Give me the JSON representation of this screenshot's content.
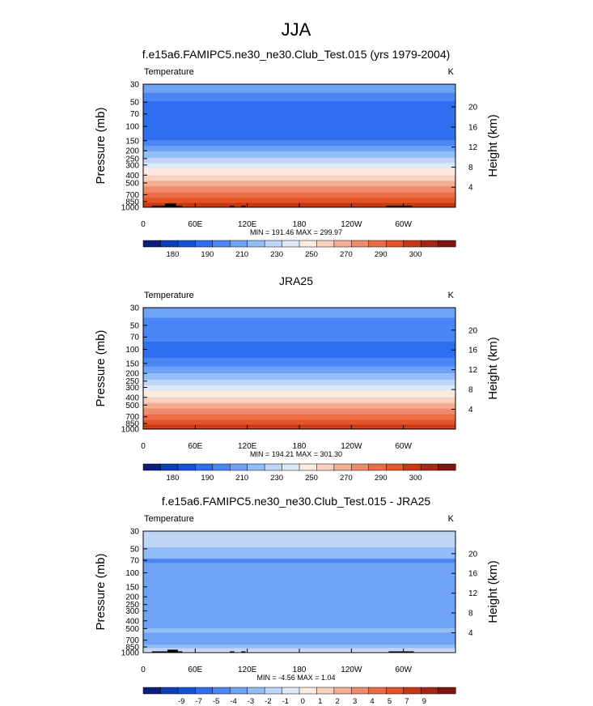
{
  "figure": {
    "title": "JJA"
  },
  "colormaps": {
    "temperature": [
      "#0b1e7e",
      "#0d3fb8",
      "#1153da",
      "#2f6ef0",
      "#4a86f5",
      "#6ea2f7",
      "#93bdf8",
      "#bfd6f8",
      "#dde8f6",
      "#fbe9e2",
      "#f7d0bf",
      "#f3ad93",
      "#ef8b6a",
      "#eb6d45",
      "#e45424",
      "#c93813",
      "#a52713",
      "#7d1210"
    ],
    "difference": [
      "#0b1e7e",
      "#0d3fb8",
      "#1153da",
      "#2f6ef0",
      "#4a86f5",
      "#6ea2f7",
      "#93bdf8",
      "#bfd6f8",
      "#dde8f6",
      "#fbe9e2",
      "#f7d0bf",
      "#f3ad93",
      "#ef8b6a",
      "#eb6d45",
      "#e45424",
      "#c93813",
      "#a52713",
      "#7d1210"
    ],
    "temperature_labels": [
      "180",
      "190",
      "210",
      "230",
      "250",
      "270",
      "290",
      "300"
    ],
    "temperature_label_positions": [
      0.5,
      2.5,
      4.5,
      6.5,
      8.5,
      10.5,
      12.5,
      14.5
    ],
    "difference_labels": [
      "-9",
      "-7",
      "-5",
      "-4",
      "-3",
      "-2",
      "-1",
      "0",
      "1",
      "2",
      "3",
      "4",
      "5",
      "7",
      "9"
    ],
    "difference_label_positions": [
      1,
      2,
      3,
      4,
      5,
      6,
      7,
      8,
      9,
      10,
      11,
      12,
      13,
      14,
      15
    ]
  },
  "chart_data": [
    {
      "type": "heatmap",
      "title": "f.e15a6.FAMIPC5.ne30_ne30.Club_Test.015 (yrs 1979-2004)",
      "variable": "Temperature",
      "units": "K",
      "ylabel": "Pressure (mb)",
      "ylabel_right": "Height (km)",
      "x_ticks": [
        "0",
        "60E",
        "120E",
        "180",
        "120W",
        "60W"
      ],
      "x_tick_lon": [
        0,
        60,
        120,
        180,
        240,
        300
      ],
      "y_ticks": [
        "30",
        "50",
        "70",
        "100",
        "150",
        "200",
        "250",
        "300",
        "400",
        "500",
        "700",
        "850",
        "1000"
      ],
      "y_tick_values": [
        30,
        50,
        70,
        100,
        150,
        200,
        250,
        300,
        400,
        500,
        700,
        850,
        1000
      ],
      "right_ticks": [
        "20",
        "16",
        "12",
        "8",
        "4"
      ],
      "right_tick_values": [
        20,
        16,
        12,
        8,
        4
      ],
      "ylim": [
        30,
        1000
      ],
      "xlim": [
        0,
        360
      ],
      "colormap": "temperature",
      "bands": [
        {
          "from": 30,
          "to": 38,
          "color_index": 5
        },
        {
          "from": 38,
          "to": 48,
          "color_index": 4
        },
        {
          "from": 48,
          "to": 150,
          "color_index": 3
        },
        {
          "from": 150,
          "to": 175,
          "color_index": 4
        },
        {
          "from": 175,
          "to": 205,
          "color_index": 5
        },
        {
          "from": 205,
          "to": 245,
          "color_index": 6
        },
        {
          "from": 245,
          "to": 285,
          "color_index": 7
        },
        {
          "from": 285,
          "to": 330,
          "color_index": 8
        },
        {
          "from": 330,
          "to": 400,
          "color_index": 9
        },
        {
          "from": 400,
          "to": 470,
          "color_index": 10
        },
        {
          "from": 470,
          "to": 550,
          "color_index": 11
        },
        {
          "from": 550,
          "to": 650,
          "color_index": 12
        },
        {
          "from": 650,
          "to": 760,
          "color_index": 13
        },
        {
          "from": 760,
          "to": 880,
          "color_index": 14
        },
        {
          "from": 880,
          "to": 1000,
          "color_index": 15
        }
      ],
      "topography": [
        {
          "lon_from": 10,
          "lon_to": 25,
          "p": 960
        },
        {
          "lon_from": 25,
          "lon_to": 38,
          "p": 900
        },
        {
          "lon_from": 38,
          "lon_to": 45,
          "p": 960
        },
        {
          "lon_from": 100,
          "lon_to": 105,
          "p": 960
        },
        {
          "lon_from": 113,
          "lon_to": 118,
          "p": 960
        },
        {
          "lon_from": 280,
          "lon_to": 310,
          "p": 960
        }
      ],
      "min_max": "MIN = 191.46  MAX = 299.97"
    },
    {
      "type": "heatmap",
      "title": "JRA25",
      "variable": "Temperature",
      "units": "K",
      "ylabel": "Pressure (mb)",
      "ylabel_right": "Height (km)",
      "x_ticks": [
        "0",
        "60E",
        "120E",
        "180",
        "120W",
        "60W"
      ],
      "x_tick_lon": [
        0,
        60,
        120,
        180,
        240,
        300
      ],
      "y_ticks": [
        "30",
        "50",
        "70",
        "100",
        "150",
        "200",
        "250",
        "300",
        "400",
        "500",
        "700",
        "850",
        "1000"
      ],
      "y_tick_values": [
        30,
        50,
        70,
        100,
        150,
        200,
        250,
        300,
        400,
        500,
        700,
        850,
        1000
      ],
      "right_ticks": [
        "20",
        "16",
        "12",
        "8",
        "4"
      ],
      "right_tick_values": [
        20,
        16,
        12,
        8,
        4
      ],
      "ylim": [
        30,
        1000
      ],
      "xlim": [
        0,
        360
      ],
      "colormap": "temperature",
      "bands": [
        {
          "from": 30,
          "to": 40,
          "color_index": 5
        },
        {
          "from": 40,
          "to": 80,
          "color_index": 4
        },
        {
          "from": 80,
          "to": 130,
          "color_index": 3
        },
        {
          "from": 130,
          "to": 165,
          "color_index": 4
        },
        {
          "from": 165,
          "to": 200,
          "color_index": 5
        },
        {
          "from": 200,
          "to": 240,
          "color_index": 6
        },
        {
          "from": 240,
          "to": 285,
          "color_index": 7
        },
        {
          "from": 285,
          "to": 330,
          "color_index": 8
        },
        {
          "from": 330,
          "to": 400,
          "color_index": 9
        },
        {
          "from": 400,
          "to": 470,
          "color_index": 10
        },
        {
          "from": 470,
          "to": 550,
          "color_index": 11
        },
        {
          "from": 550,
          "to": 650,
          "color_index": 12
        },
        {
          "from": 650,
          "to": 760,
          "color_index": 13
        },
        {
          "from": 760,
          "to": 880,
          "color_index": 14
        },
        {
          "from": 880,
          "to": 970,
          "color_index": 15
        },
        {
          "from": 970,
          "to": 1000,
          "color_index": 16
        }
      ],
      "topography": [],
      "min_max": "MIN = 194.21  MAX = 301.30"
    },
    {
      "type": "heatmap",
      "title": "f.e15a6.FAMIPC5.ne30_ne30.Club_Test.015 - JRA25",
      "variable": "Temperature",
      "units": "K",
      "ylabel": "Pressure (mb)",
      "ylabel_right": "Height (km)",
      "x_ticks": [
        "0",
        "60E",
        "120E",
        "180",
        "120W",
        "60W"
      ],
      "x_tick_lon": [
        0,
        60,
        120,
        180,
        240,
        300
      ],
      "y_ticks": [
        "30",
        "50",
        "70",
        "100",
        "150",
        "200",
        "250",
        "300",
        "400",
        "500",
        "700",
        "850",
        "1000"
      ],
      "y_tick_values": [
        30,
        50,
        70,
        100,
        150,
        200,
        250,
        300,
        400,
        500,
        700,
        850,
        1000
      ],
      "right_ticks": [
        "20",
        "16",
        "12",
        "8",
        "4"
      ],
      "right_tick_values": [
        20,
        16,
        12,
        8,
        4
      ],
      "ylim": [
        30,
        1000
      ],
      "xlim": [
        0,
        360
      ],
      "colormap": "difference",
      "bands": [
        {
          "from": 30,
          "to": 48,
          "color_index": 7
        },
        {
          "from": 48,
          "to": 66,
          "color_index": 6
        },
        {
          "from": 66,
          "to": 76,
          "color_index": 4
        },
        {
          "from": 76,
          "to": 500,
          "color_index": 5
        },
        {
          "from": 500,
          "to": 560,
          "color_index": 6
        },
        {
          "from": 560,
          "to": 800,
          "color_index": 5
        },
        {
          "from": 800,
          "to": 880,
          "color_index": 6
        },
        {
          "from": 880,
          "to": 960,
          "color_index": 7
        },
        {
          "from": 960,
          "to": 1000,
          "color_index": 8
        }
      ],
      "topography": [
        {
          "lon_from": 10,
          "lon_to": 28,
          "p": 965
        },
        {
          "lon_from": 28,
          "lon_to": 40,
          "p": 920
        },
        {
          "lon_from": 40,
          "lon_to": 45,
          "p": 965
        },
        {
          "lon_from": 100,
          "lon_to": 105,
          "p": 965
        },
        {
          "lon_from": 113,
          "lon_to": 118,
          "p": 965
        },
        {
          "lon_from": 283,
          "lon_to": 312,
          "p": 965
        }
      ],
      "min_max": "MIN =  -4.56  MAX =   1.04"
    }
  ]
}
